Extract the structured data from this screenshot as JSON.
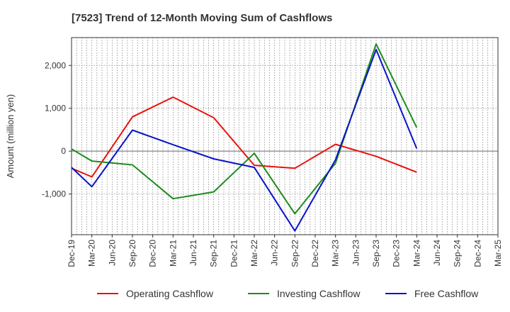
{
  "chart_data": {
    "type": "line",
    "title": "[7523]  Trend of 12-Month Moving Sum of Cashflows",
    "xlabel": "",
    "ylabel": "Amount (million yen)",
    "ylim": [
      -1950,
      2650
    ],
    "yticks": [
      2000,
      1000,
      0,
      -1000
    ],
    "ytick_labels": [
      "2,000",
      "1,000",
      "0",
      "-1,000"
    ],
    "zero_line": true,
    "grid": "dotted",
    "legend_position": "bottom",
    "categories": [
      "Dec-19",
      "Mar-20",
      "Jun-20",
      "Sep-20",
      "Dec-20",
      "Mar-21",
      "Jun-21",
      "Sep-21",
      "Dec-21",
      "Mar-22",
      "Jun-22",
      "Sep-22",
      "Dec-22",
      "Mar-23",
      "Jun-23",
      "Sep-23",
      "Dec-23",
      "Mar-24",
      "Jun-24",
      "Sep-24",
      "Dec-24",
      "Mar-25"
    ],
    "series": [
      {
        "name": "Operating Cashflow",
        "color": "#e8120c",
        "values": [
          -400,
          -600,
          null,
          800,
          null,
          1260,
          null,
          780,
          null,
          -330,
          null,
          -400,
          null,
          160,
          null,
          -120,
          null,
          -490,
          null,
          null,
          null,
          null
        ]
      },
      {
        "name": "Investing Cashflow",
        "color": "#1e8c1e",
        "values": [
          50,
          -230,
          null,
          -320,
          null,
          -1110,
          null,
          -950,
          null,
          -50,
          null,
          -1460,
          null,
          -280,
          null,
          2500,
          null,
          550,
          null,
          null,
          null,
          null
        ]
      },
      {
        "name": "Free Cashflow",
        "color": "#0a14c8",
        "values": [
          -380,
          -830,
          null,
          490,
          null,
          150,
          null,
          -180,
          null,
          -380,
          null,
          -1860,
          null,
          -200,
          null,
          2370,
          null,
          60,
          null,
          null,
          null,
          null
        ]
      }
    ]
  }
}
